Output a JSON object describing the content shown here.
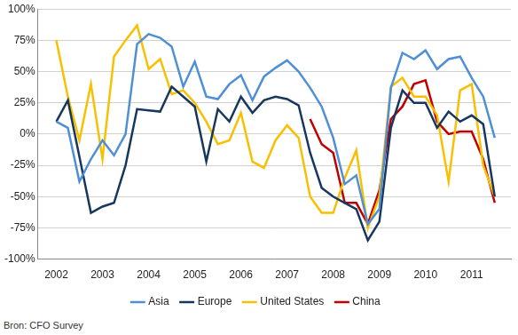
{
  "chart_data": {
    "type": "line",
    "source": "Bron: CFO Survey",
    "x": [
      2002,
      2002.25,
      2002.5,
      2002.75,
      2003,
      2003.25,
      2003.5,
      2003.75,
      2004,
      2004.25,
      2004.5,
      2004.75,
      2005,
      2005.25,
      2005.5,
      2005.75,
      2006,
      2006.25,
      2006.5,
      2006.75,
      2007,
      2007.25,
      2007.5,
      2007.75,
      2008,
      2008.25,
      2008.5,
      2008.75,
      2009,
      2009.25,
      2009.5,
      2009.75,
      2010,
      2010.25,
      2010.5,
      2010.75,
      2011,
      2011.25,
      2011.5
    ],
    "series": [
      {
        "name": "Asia",
        "color": "#4f8fd6",
        "values": [
          10,
          5,
          -38,
          -20,
          -5,
          -17,
          0,
          72,
          80,
          77,
          70,
          38,
          58,
          30,
          28,
          40,
          47,
          27,
          46,
          53,
          59,
          50,
          37,
          22,
          -3,
          -40,
          -33,
          -72,
          -60,
          37,
          65,
          60,
          67,
          52,
          60,
          62,
          45,
          30,
          -3
        ]
      },
      {
        "name": "Europe",
        "color": "#17375e",
        "values": [
          10,
          27,
          -18,
          -63,
          -58,
          -55,
          -25,
          20,
          19,
          18,
          38,
          30,
          22,
          -22,
          20,
          10,
          30,
          17,
          27,
          30,
          28,
          23,
          -15,
          -43,
          -50,
          -55,
          -60,
          -85,
          -70,
          5,
          35,
          25,
          25,
          5,
          18,
          10,
          15,
          8,
          -50
        ]
      },
      {
        "name": "United States",
        "color": "#f8c000",
        "values": [
          75,
          30,
          -5,
          40,
          -20,
          62,
          75,
          87,
          52,
          60,
          32,
          35,
          25,
          10,
          -8,
          -5,
          17,
          -22,
          -27,
          -5,
          7,
          -3,
          -50,
          -63,
          -63,
          -35,
          -13,
          -75,
          -50,
          38,
          45,
          30,
          30,
          15,
          -38,
          35,
          40,
          -25,
          -50
        ]
      },
      {
        "name": "China",
        "color": "#c00000",
        "values": [
          null,
          null,
          null,
          null,
          null,
          null,
          null,
          null,
          null,
          null,
          null,
          null,
          null,
          null,
          null,
          null,
          null,
          null,
          null,
          null,
          null,
          null,
          12,
          -8,
          -15,
          -55,
          -55,
          -72,
          -45,
          12,
          22,
          40,
          43,
          10,
          0,
          2,
          2,
          -20,
          -55
        ]
      }
    ],
    "xlim": [
      2001.6,
      2011.85
    ],
    "xticks": [
      2002,
      2003,
      2004,
      2005,
      2006,
      2007,
      2008,
      2009,
      2010,
      2011
    ],
    "ylim": [
      -100,
      100
    ],
    "yticks": [
      {
        "value": -100,
        "label": "-100%"
      },
      {
        "value": -75,
        "label": "-75%"
      },
      {
        "value": -50,
        "label": "-50%"
      },
      {
        "value": -25,
        "label": "-25%"
      },
      {
        "value": 0,
        "label": "0%"
      },
      {
        "value": 25,
        "label": "25%"
      },
      {
        "value": 50,
        "label": "50%"
      },
      {
        "value": 75,
        "label": "75%"
      },
      {
        "value": 100,
        "label": "100%"
      }
    ],
    "grid": true,
    "legend": "bottom"
  }
}
